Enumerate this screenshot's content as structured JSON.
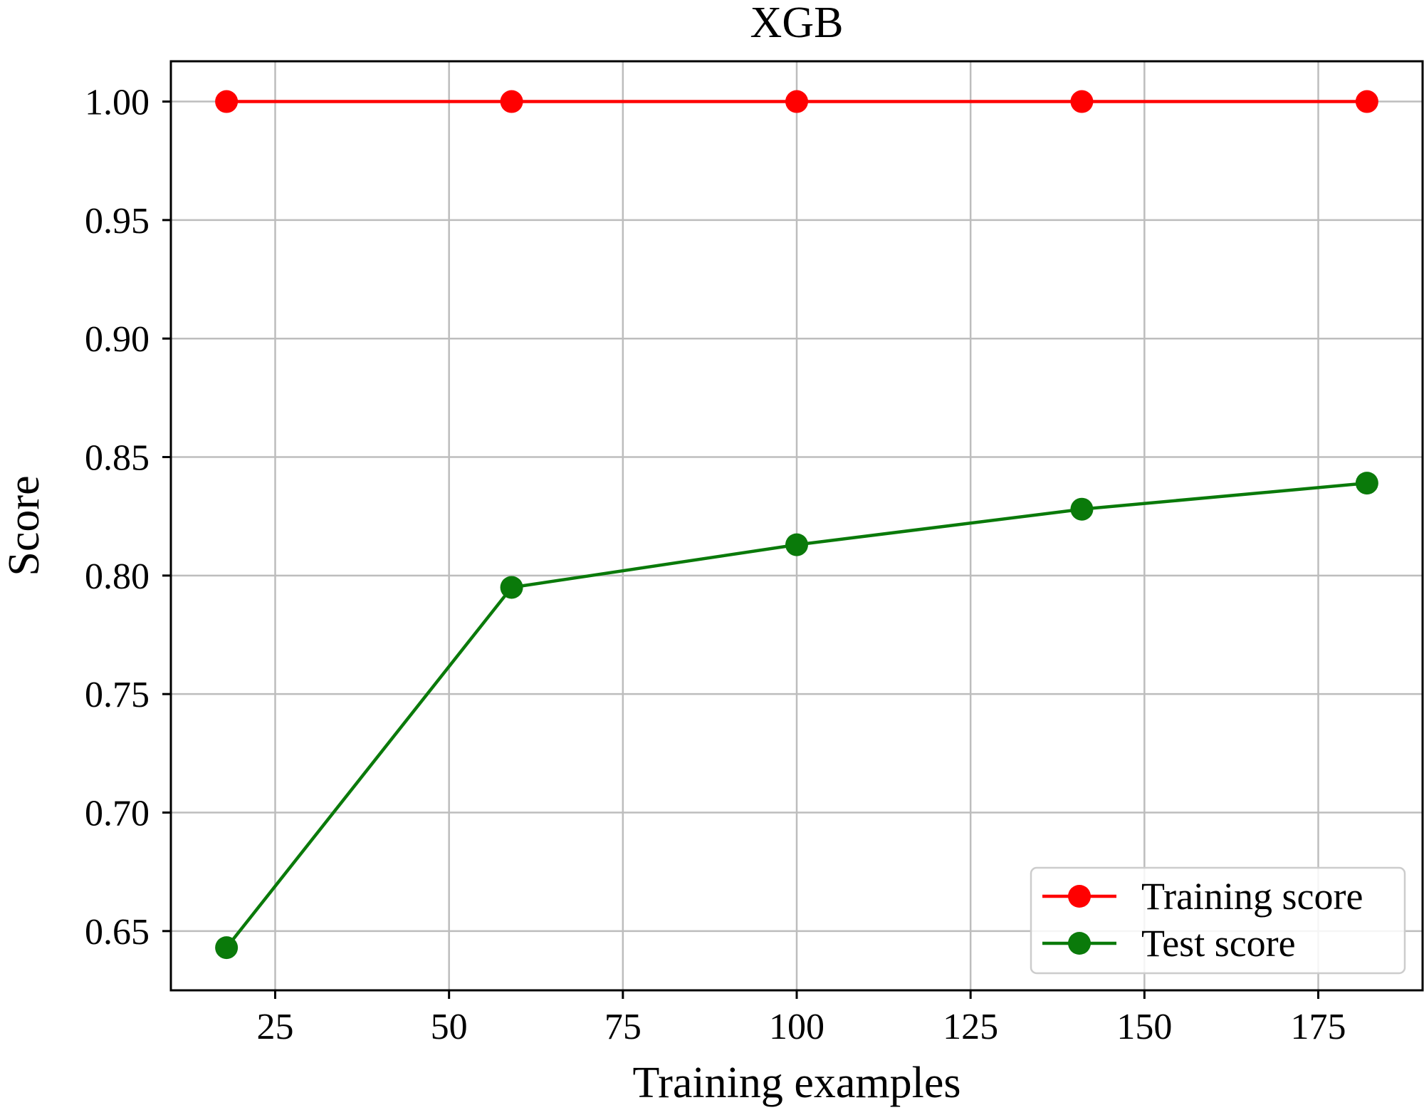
{
  "chart_data": {
    "type": "line",
    "title": "XGB",
    "xlabel": "Training examples",
    "ylabel": "Score",
    "xlim": [
      10,
      190
    ],
    "ylim": [
      0.625,
      1.017
    ],
    "xticks": [
      25,
      50,
      75,
      100,
      125,
      150,
      175
    ],
    "xtick_labels": [
      "25",
      "50",
      "75",
      "100",
      "125",
      "150",
      "175"
    ],
    "yticks": [
      0.65,
      0.7,
      0.75,
      0.8,
      0.85,
      0.9,
      0.95,
      1.0
    ],
    "ytick_labels": [
      "0.65",
      "0.70",
      "0.75",
      "0.80",
      "0.85",
      "0.90",
      "0.95",
      "1.00"
    ],
    "grid": true,
    "legend_position": "bottom-right",
    "x": [
      18,
      59,
      100,
      141,
      182
    ],
    "series": [
      {
        "name": "Training score",
        "color": "#ff0000",
        "marker": "circle",
        "values": [
          1.0,
          1.0,
          1.0,
          1.0,
          1.0
        ]
      },
      {
        "name": "Test score",
        "color": "#0a7a0a",
        "marker": "circle",
        "values": [
          0.643,
          0.795,
          0.813,
          0.828,
          0.839
        ]
      }
    ]
  }
}
